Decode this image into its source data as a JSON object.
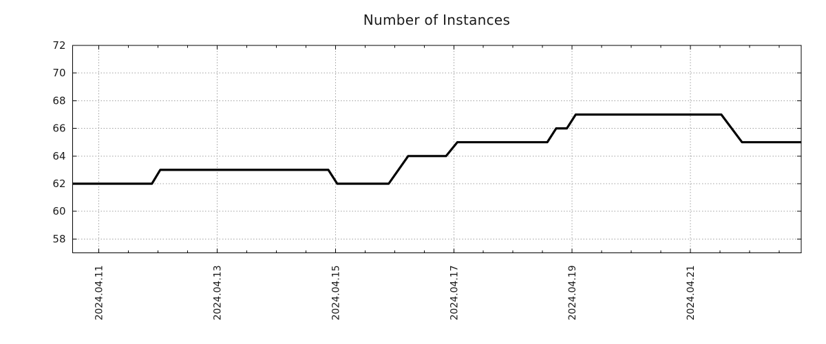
{
  "colors": {
    "background": "#ffffff",
    "line": "#000000",
    "grid": "#9e9e9e",
    "axis": "#000000",
    "text": "#1a1a1a"
  },
  "chart_data": {
    "type": "line",
    "title": "Number of Instances",
    "xlabel": "",
    "ylabel": "",
    "x_unit": "date (decimal day of April 2024)",
    "xlim": [
      10.56,
      22.87
    ],
    "ylim": [
      57,
      72
    ],
    "y_ticks": [
      58,
      60,
      62,
      64,
      66,
      68,
      70,
      72
    ],
    "x_major_ticks": [
      {
        "day": 11,
        "label": "2024.04.11"
      },
      {
        "day": 13,
        "label": "2024.04.13"
      },
      {
        "day": 15,
        "label": "2024.04.15"
      },
      {
        "day": 17,
        "label": "2024.04.17"
      },
      {
        "day": 19,
        "label": "2024.04.19"
      },
      {
        "day": 21,
        "label": "2024.04.21"
      }
    ],
    "x_minor_tick_interval_days": 0.5,
    "grid": "dotted, at major ticks only, mirrored ticks on all four spines",
    "legend": "none",
    "series": [
      {
        "name": "Number of Instances",
        "color": "#000000",
        "points": [
          [
            10.56,
            62
          ],
          [
            11.9,
            62
          ],
          [
            12.04,
            63
          ],
          [
            14.88,
            63
          ],
          [
            15.03,
            62
          ],
          [
            15.9,
            62
          ],
          [
            16.23,
            64
          ],
          [
            16.87,
            64
          ],
          [
            17.06,
            65
          ],
          [
            18.58,
            65
          ],
          [
            18.73,
            66
          ],
          [
            18.91,
            66
          ],
          [
            19.06,
            67
          ],
          [
            21.52,
            67
          ],
          [
            21.87,
            65
          ],
          [
            22.87,
            65
          ]
        ]
      }
    ]
  }
}
